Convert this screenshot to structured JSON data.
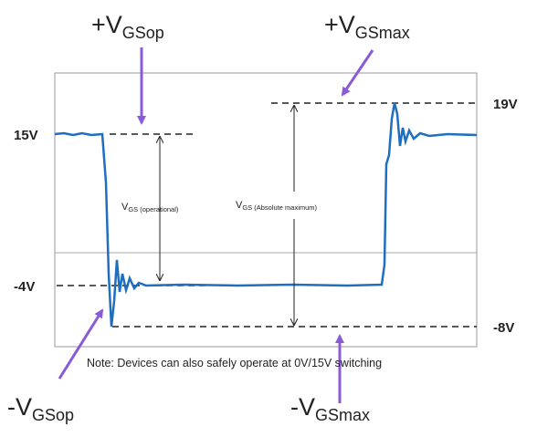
{
  "labels": {
    "plus_vgsop": {
      "main": "+V",
      "sub": "GSop"
    },
    "plus_vgsmax": {
      "main": "+V",
      "sub": "GSmax"
    },
    "minus_vgsop": {
      "main": "-V",
      "sub": "GSop"
    },
    "minus_vgsmax": {
      "main": "-V",
      "sub": "GSmax"
    }
  },
  "levels": {
    "l15": "15V",
    "l19": "19V",
    "lm4": "-4V",
    "lm8": "-8V"
  },
  "spans": {
    "operational": {
      "main": "V",
      "sub": "GS (operational)"
    },
    "absolute": {
      "main": "V",
      "sub": "GS  (Absolute maximum)"
    }
  },
  "note": "Note:  Devices can also safely operate at 0V/15V switching"
}
